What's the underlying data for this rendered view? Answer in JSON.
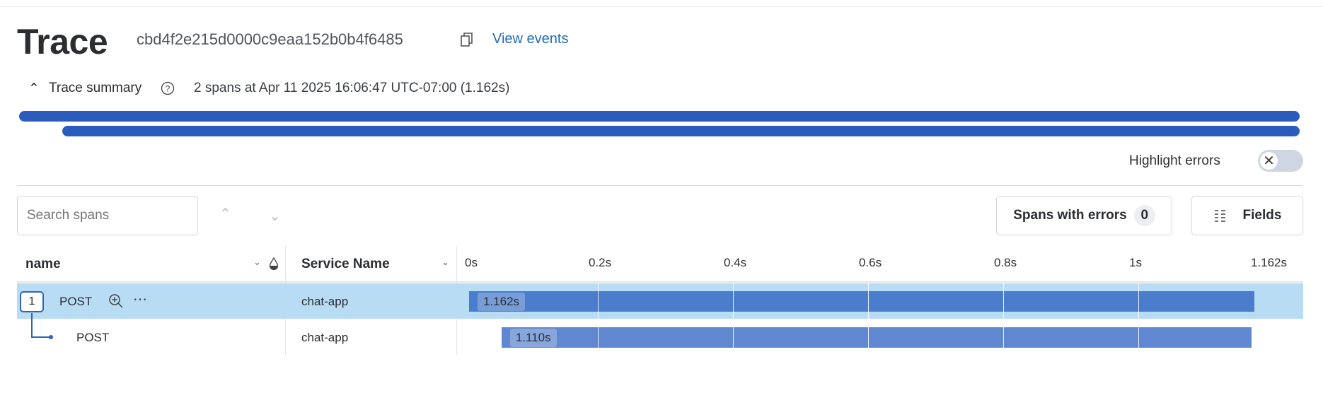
{
  "header": {
    "title": "Trace",
    "trace_id": "cbd4f2e215d0000c9eaa152b0b4f6485",
    "view_events": "View events"
  },
  "summary": {
    "toggle_label": "Trace summary",
    "details": "2 spans at Apr 11 2025 16:06:47 UTC-07:00 (1.162s)"
  },
  "highlight_errors": {
    "label": "Highlight errors",
    "enabled": false
  },
  "toolbar": {
    "search_placeholder": "Search spans",
    "spans_with_errors_label": "Spans with errors",
    "spans_with_errors_count": "0",
    "fields_label": "Fields"
  },
  "table": {
    "columns": {
      "name": "name",
      "service": "Service Name"
    },
    "ticks": [
      "0s",
      "0.2s",
      "0.4s",
      "0.6s",
      "0.8s",
      "1s",
      "1.162s"
    ],
    "total_duration_s": 1.162,
    "rows": [
      {
        "badge": "1",
        "name": "POST",
        "service": "chat-app",
        "start_s": 0,
        "duration_s": 1.162,
        "duration_label": "1.162s",
        "selected": true
      },
      {
        "name": "POST",
        "service": "chat-app",
        "start_s": 0.048,
        "duration_s": 1.11,
        "duration_label": "1.110s",
        "selected": false
      }
    ]
  },
  "colors": {
    "accent": "#2a5bbd",
    "link": "#1f6bb8",
    "selected_row": "#b9dcf5",
    "span_selected": "#4a7dcc",
    "span": "#6088d0"
  }
}
